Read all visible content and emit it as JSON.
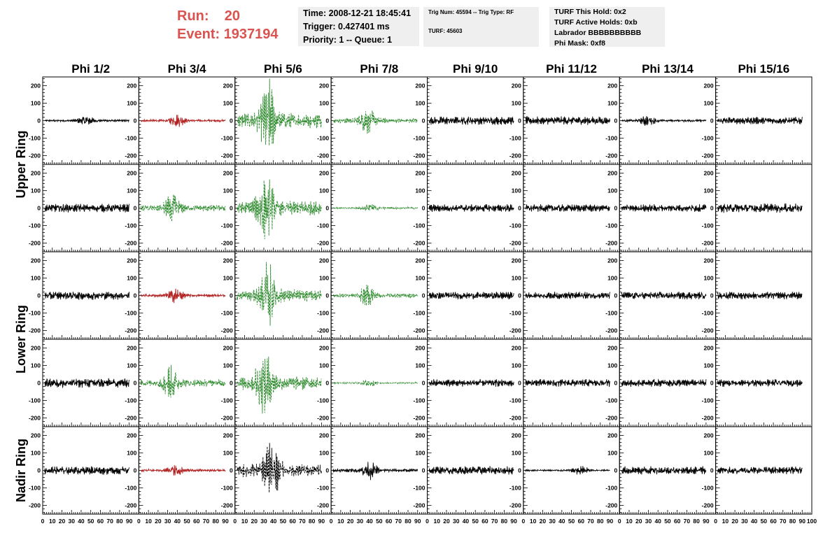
{
  "run": {
    "run_label": "Run:",
    "run_value": "20",
    "event_label": "Event:",
    "event_value": "1937194"
  },
  "info_time": [
    "Time: 2008-12-21 18:45:41",
    "Trigger: 0.427401 ms",
    "Priority: 1 -- Queue: 1"
  ],
  "info_trig": {
    "line1": "Trig Num: 45594 -- Trig Type: RF",
    "line2": "TURF: 45603"
  },
  "info_turf": [
    "TURF This Hold: 0x2",
    "TURF Active Holds: 0xb",
    "Labrador BBBBBBBBBB",
    "Phi Mask: 0xf8"
  ],
  "colors": {
    "header_red": "#d9534f",
    "trace_black": "#000000",
    "trace_red": "#b22222",
    "trace_green": "#2e8b2e"
  },
  "chart_data": {
    "type": "line",
    "columns": [
      "Phi 1/2",
      "Phi 3/4",
      "Phi 5/6",
      "Phi 7/8",
      "Phi 9/10",
      "Phi 11/12",
      "Phi 13/14",
      "Phi 15/16"
    ],
    "rows": [
      "Upper Ring",
      "Lower Ring",
      "Nadir Ring"
    ],
    "panel_rows": 5,
    "xlim": [
      0,
      100
    ],
    "ylim": [
      -250,
      250
    ],
    "x_ticks": [
      "0",
      "10",
      "20",
      "30",
      "40",
      "50",
      "60",
      "70",
      "80",
      "90",
      "100"
    ],
    "y_ticks": [
      -200,
      -100,
      0,
      100,
      200
    ],
    "y_ticks_left_cols": [
      0,
      2,
      4,
      6
    ],
    "panels": [
      [
        {
          "c": "black",
          "a": 28,
          "p": 45
        },
        {
          "c": "red",
          "a": 32,
          "p": 40
        },
        {
          "c": "green",
          "a": 205,
          "p": 35
        },
        {
          "c": "green",
          "a": 65,
          "p": 38
        },
        {
          "c": "black",
          "a": 20,
          "p": 0
        },
        {
          "c": "black",
          "a": 20,
          "p": 0
        },
        {
          "c": "black",
          "a": 30,
          "p": 30
        },
        {
          "c": "black",
          "a": 18,
          "p": 0
        }
      ],
      [
        {
          "c": "black",
          "a": 20,
          "p": 0
        },
        {
          "c": "green",
          "a": 85,
          "p": 35
        },
        {
          "c": "green",
          "a": 190,
          "p": 32
        },
        {
          "c": "green",
          "a": 25,
          "p": 40
        },
        {
          "c": "black",
          "a": 18,
          "p": 0
        },
        {
          "c": "black",
          "a": 18,
          "p": 0
        },
        {
          "c": "black",
          "a": 18,
          "p": 0
        },
        {
          "c": "black",
          "a": 22,
          "p": 0
        }
      ],
      [
        {
          "c": "black",
          "a": 20,
          "p": 0
        },
        {
          "c": "red",
          "a": 38,
          "p": 38
        },
        {
          "c": "green",
          "a": 170,
          "p": 35
        },
        {
          "c": "green",
          "a": 55,
          "p": 38
        },
        {
          "c": "black",
          "a": 18,
          "p": 0
        },
        {
          "c": "black",
          "a": 18,
          "p": 0
        },
        {
          "c": "black",
          "a": 18,
          "p": 0
        },
        {
          "c": "black",
          "a": 18,
          "p": 0
        }
      ],
      [
        {
          "c": "black",
          "a": 22,
          "p": 0
        },
        {
          "c": "green",
          "a": 95,
          "p": 33
        },
        {
          "c": "green",
          "a": 185,
          "p": 30
        },
        {
          "c": "green",
          "a": 20,
          "p": 40
        },
        {
          "c": "black",
          "a": 18,
          "p": 0
        },
        {
          "c": "black",
          "a": 18,
          "p": 0
        },
        {
          "c": "black",
          "a": 18,
          "p": 0
        },
        {
          "c": "black",
          "a": 18,
          "p": 0
        }
      ],
      [
        {
          "c": "black",
          "a": 20,
          "p": 0
        },
        {
          "c": "red",
          "a": 35,
          "p": 38
        },
        {
          "c": "black",
          "a": 175,
          "p": 38
        },
        {
          "c": "black",
          "a": 45,
          "p": 40
        },
        {
          "c": "black",
          "a": 20,
          "p": 0
        },
        {
          "c": "black",
          "a": 25,
          "p": 60
        },
        {
          "c": "black",
          "a": 20,
          "p": 0
        },
        {
          "c": "black",
          "a": 18,
          "p": 0
        }
      ]
    ]
  }
}
